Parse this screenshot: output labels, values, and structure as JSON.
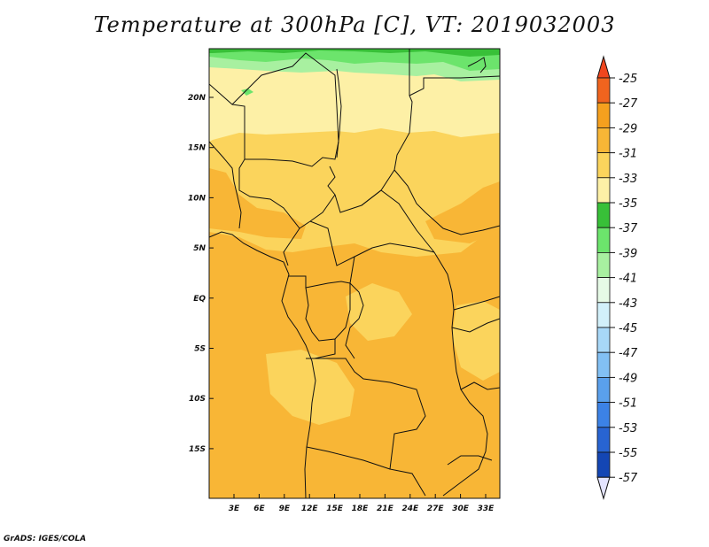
{
  "title": "Temperature at 300hPa [C], VT: 2019032003",
  "footer": "GrADS: IGES/COLA",
  "lon_ticks": [
    "3E",
    "6E",
    "9E",
    "12E",
    "15E",
    "18E",
    "21E",
    "24E",
    "27E",
    "30E",
    "33E"
  ],
  "lat_ticks": [
    "20N",
    "15N",
    "10N",
    "5N",
    "EQ",
    "5S",
    "10S",
    "15S"
  ],
  "legend": {
    "labels": [
      "-25",
      "-27",
      "-29",
      "-31",
      "-33",
      "-35",
      "-37",
      "-39",
      "-41",
      "-43",
      "-45",
      "-47",
      "-49",
      "-51",
      "-53",
      "-55",
      "-57"
    ],
    "top_color": "#f0461e",
    "bottom_color": "#e4e4ff",
    "colors": [
      "#f0641e",
      "#f5a01e",
      "#f8b636",
      "#fbd45c",
      "#fdf0a6",
      "#38c038",
      "#6ce46c",
      "#a8f0a0",
      "#e6fae6",
      "#d2f0fa",
      "#a8d8f8",
      "#82c0f4",
      "#5aa0ec",
      "#3c82e6",
      "#2864d2",
      "#1446b4",
      "#0a1e80"
    ]
  },
  "field_colors": {
    "c_29": "#f8b636",
    "c_31": "#fbd45c",
    "c_33": "#fdf0a6",
    "c_35": "#38c038",
    "c_37": "#6ce46c",
    "c_39": "#a8f0a0"
  }
}
